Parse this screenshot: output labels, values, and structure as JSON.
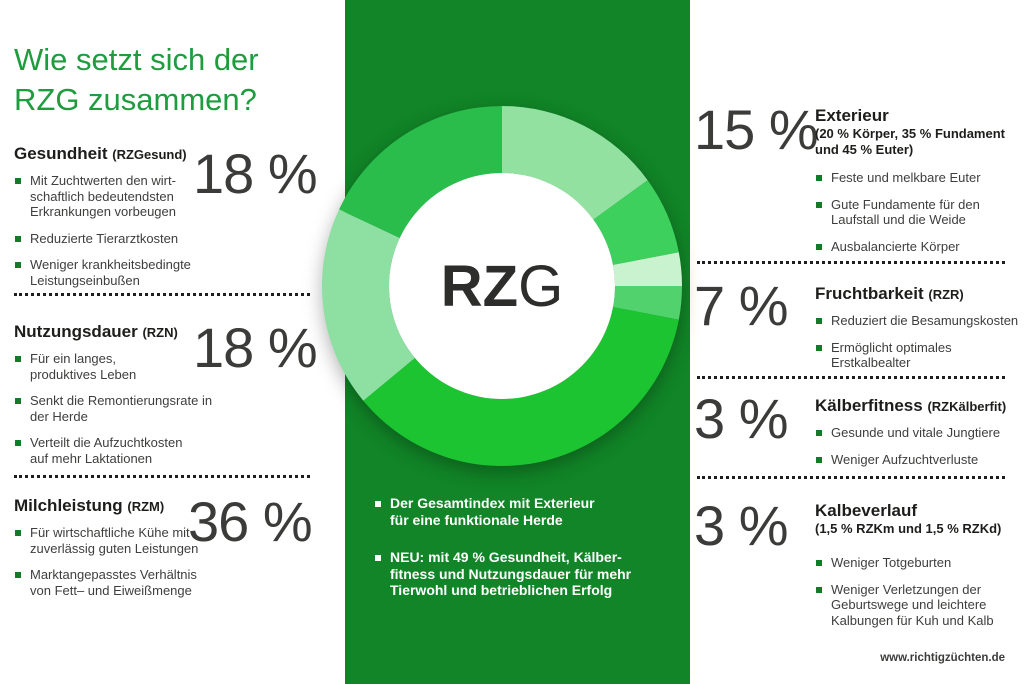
{
  "title": "Wie setzt sich der\nRZG zusammen?",
  "footer": "www.richtigzüchten.de",
  "colors": {
    "panel_green": "#118527",
    "title_green": "#1e9c3e",
    "bullet_square_green": "#147a28",
    "text_dark": "#1d1d1b",
    "pct_gray": "#3b3b3a"
  },
  "left_sections": [
    {
      "heading": "Gesundheit",
      "code": "(RZGesund)",
      "pct": "18 %",
      "bullets": [
        "Mit Zuchtwerten den wirt-\nschaftlich bedeutendsten\nErkrankungen vorbeugen",
        "Reduzierte Tierarztkosten",
        "Weniger krankheitsbedingte\nLeistungseinbußen"
      ]
    },
    {
      "heading": "Nutzungsdauer",
      "code": "(RZN)",
      "pct": "18 %",
      "bullets": [
        "Für ein langes,\nproduktives Leben",
        "Senkt die Remontierungsrate in\nder Herde",
        "Verteilt die Aufzuchtkosten\nauf mehr Laktationen"
      ]
    },
    {
      "heading": "Milchleistung",
      "code": "(RZM)",
      "pct": "36 %",
      "bullets": [
        "Für wirtschaftliche Kühe mit\nzuverlässig guten Leistungen",
        "Marktangepasstes Verhältnis\nvon Fett– und Eiweißmenge"
      ]
    }
  ],
  "right_sections": [
    {
      "heading": "Exterieur",
      "code": "",
      "subtitle": "(20 % Körper, 35 % Fundament\nund 45 % Euter)",
      "pct": "15 %",
      "bullets": [
        "Feste und melkbare Euter",
        "Gute Fundamente für den\nLaufstall und die Weide",
        "Ausbalancierte Körper"
      ]
    },
    {
      "heading": "Fruchtbarkeit",
      "code": "(RZR)",
      "pct": "7 %",
      "bullets": [
        "Reduziert die Besamungskosten",
        "Ermöglicht optimales\nErstkalbealter"
      ]
    },
    {
      "heading": "Kälberfitness",
      "code": "(RZKälberfit)",
      "pct": "3 %",
      "bullets": [
        "Gesunde und vitale Jungtiere",
        "Weniger Aufzuchtverluste"
      ]
    },
    {
      "heading": "Kalbeverlauf",
      "code": "",
      "subtitle": "(1,5 % RZKm und 1,5 % RZKd)",
      "pct": "3 %",
      "bullets": [
        "Weniger Totgeburten",
        "Weniger Verletzungen der\nGeburtswege und leichtere\nKalbungen für Kuh und Kalb"
      ]
    }
  ],
  "center": {
    "logo_bold": "RZ",
    "logo_light": "G",
    "points": [
      "Der Gesamtindex mit Exterieur\nfür eine funktionale Herde",
      "NEU: mit 49 % Gesundheit, Kälber-\nfitness und Nutzungsdauer für mehr\nTierwohl und betrieblichen Erfolg"
    ]
  },
  "chart_data": {
    "type": "pie",
    "donut": true,
    "title": "RZG Zusammensetzung",
    "center_label": "RZG",
    "start_angle_deg": 0,
    "direction": "clockwise",
    "legend": false,
    "segments": [
      {
        "label": "Exterieur",
        "value": 15,
        "color": "#93E1A1"
      },
      {
        "label": "Fruchtbarkeit",
        "value": 7,
        "color": "#3DD05C"
      },
      {
        "label": "Kälberfitness",
        "value": 3,
        "color": "#C9F3CE"
      },
      {
        "label": "Kalbeverlauf",
        "value": 3,
        "color": "#52D26C"
      },
      {
        "label": "Milchleistung",
        "value": 36,
        "color": "#1CC431"
      },
      {
        "label": "Nutzungsdauer",
        "value": 18,
        "color": "#8EDFA2"
      },
      {
        "label": "Gesundheit",
        "value": 18,
        "color": "#2ABD4C"
      }
    ]
  }
}
